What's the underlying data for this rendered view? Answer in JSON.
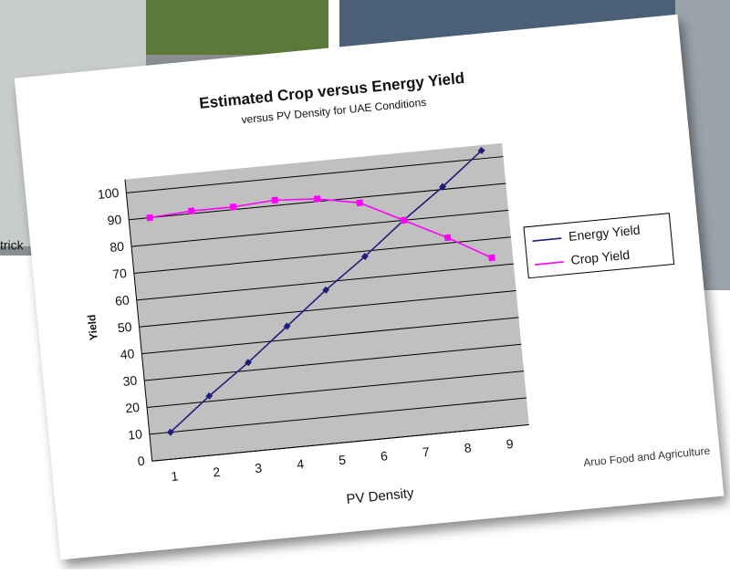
{
  "background_caption": "trick",
  "chart_data": {
    "type": "line",
    "title": "Estimated Crop versus Energy Yield",
    "subtitle": "versus PV Density for UAE Conditions",
    "x_label": "PV Density",
    "y_label": "Yield",
    "annotation": "Aruo Food and Agriculture",
    "categories": [
      "1",
      "2",
      "3",
      "4",
      "5",
      "6",
      "7",
      "8",
      "9"
    ],
    "series": [
      {
        "name": "Energy Yield",
        "color": "#1f1f7a",
        "marker": "diamond",
        "values": [
          10,
          22,
          33,
          45,
          57,
          68,
          80,
          91,
          103
        ]
      },
      {
        "name": "Crop Yield",
        "color": "#ff00ff",
        "marker": "square",
        "values": [
          90,
          91,
          91,
          92,
          91,
          88,
          80,
          72,
          63
        ]
      }
    ],
    "ylim": [
      0,
      105
    ],
    "yticks": [
      0,
      10,
      20,
      30,
      40,
      50,
      60,
      70,
      80,
      90,
      100
    ],
    "grid": true,
    "legend": "right"
  }
}
